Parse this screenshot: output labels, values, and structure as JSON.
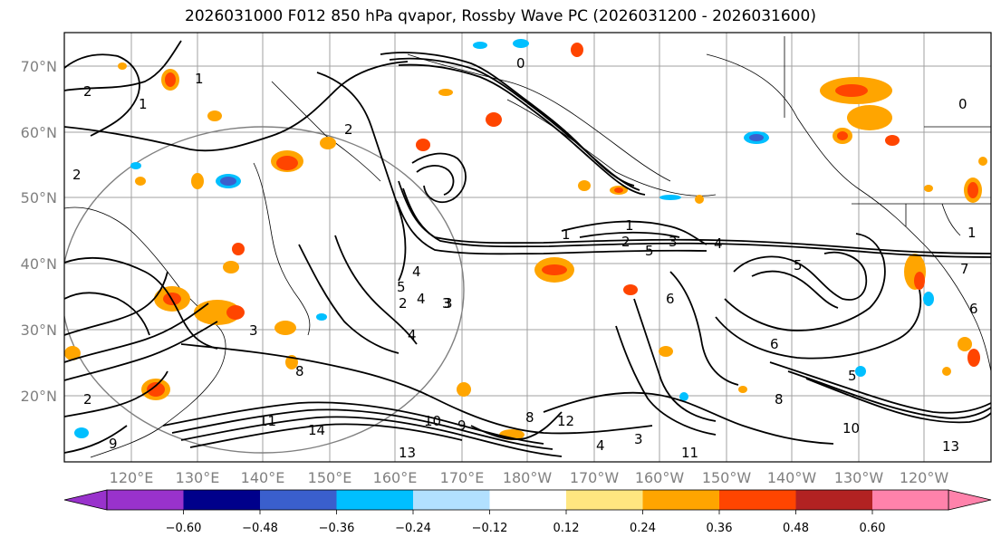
{
  "title": "2026031000 F012 850 hPa qvapor, Rossby Wave PC (2026031200 - 2026031600)",
  "lat_labels": [
    "70°N",
    "60°N",
    "50°N",
    "40°N",
    "30°N",
    "20°N"
  ],
  "lon_labels": [
    "120°E",
    "130°E",
    "140°E",
    "150°E",
    "160°E",
    "170°E",
    "180°W",
    "170°W",
    "160°W",
    "150°W",
    "140°W",
    "130°W",
    "120°W"
  ],
  "colorbar": {
    "colors": [
      "#9932CC",
      "#00008B",
      "#3A5FCD",
      "#00BFFF",
      "#B2E0FF",
      "#FFFFFF",
      "#FFE680",
      "#FFA500",
      "#FF4500",
      "#B22222",
      "#FF82AB"
    ],
    "tick_labels": [
      "−0.60",
      "−0.48",
      "−0.36",
      "−0.24",
      "−0.12",
      "0.12",
      "0.24",
      "0.36",
      "0.48",
      "0.60"
    ]
  },
  "contour_labels": [
    "2",
    "1",
    "2",
    "0",
    "1",
    "2",
    "3",
    "4",
    "5",
    "4",
    "3",
    "2",
    "1",
    "0",
    "5",
    "4",
    "3",
    "2",
    "6",
    "8",
    "10",
    "11",
    "12",
    "13",
    "14",
    "1",
    "2",
    "3",
    "4",
    "5",
    "6",
    "8",
    "9",
    "10",
    "11",
    "13",
    "1",
    "7",
    "8",
    "9",
    "6",
    "5",
    "4",
    "3"
  ]
}
